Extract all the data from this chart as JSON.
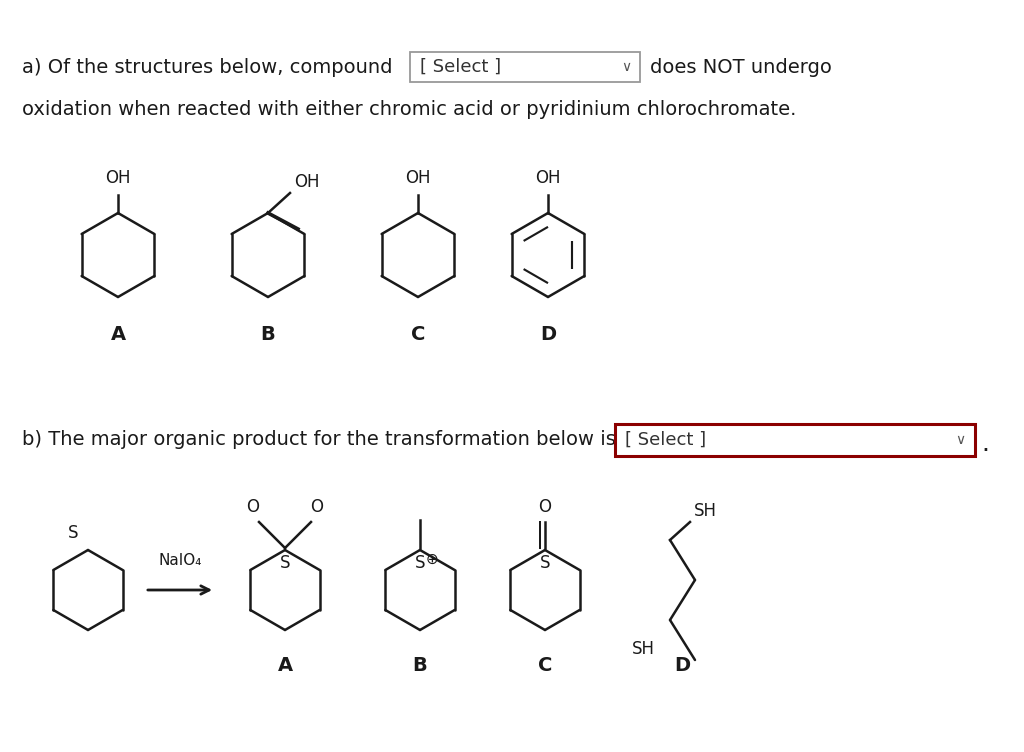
{
  "bg_color": "#ffffff",
  "text_color": "#1a1a1a",
  "line_color": "#1a1a1a",
  "line_width": 1.8,
  "select_box_a": "[ Select ]",
  "select_box_b": "[ Select ]",
  "labels_top": [
    "A",
    "B",
    "C",
    "D"
  ],
  "labels_bottom": [
    "A",
    "B",
    "C",
    "D"
  ],
  "naio4": "NaIO₄",
  "fs_main": 14,
  "fs_label": 13,
  "fs_chem": 12
}
